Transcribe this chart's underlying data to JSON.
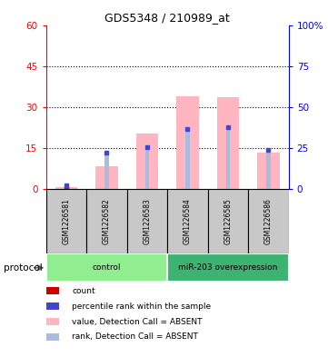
{
  "title": "GDS5348 / 210989_at",
  "samples": [
    "GSM1226581",
    "GSM1226582",
    "GSM1226583",
    "GSM1226584",
    "GSM1226585",
    "GSM1226586"
  ],
  "value_bars": [
    0.8,
    8.5,
    20.5,
    34.0,
    33.5,
    13.5
  ],
  "rank_bars": [
    1.5,
    13.5,
    15.5,
    22.0,
    22.5,
    14.5
  ],
  "count_marker": [
    true,
    false,
    false,
    false,
    false,
    false
  ],
  "count_y": [
    0.5,
    0,
    0,
    0,
    0,
    0
  ],
  "rank_marker_y": [
    1.5,
    13.5,
    15.5,
    22.0,
    22.5,
    14.5
  ],
  "ylim_left": [
    0,
    60
  ],
  "ylim_right": [
    0,
    100
  ],
  "yticks_left": [
    0,
    15,
    30,
    45,
    60
  ],
  "yticks_left_labels": [
    "0",
    "15",
    "30",
    "45",
    "60"
  ],
  "yticks_right": [
    0,
    25,
    50,
    75,
    100
  ],
  "yticks_right_labels": [
    "0",
    "25",
    "50",
    "75",
    "100%"
  ],
  "groups": [
    {
      "label": "control",
      "start": 0,
      "end": 3,
      "color": "#90EE90"
    },
    {
      "label": "miR-203 overexpression",
      "start": 3,
      "end": 6,
      "color": "#3CB371"
    }
  ],
  "bar_color_value": "#FFB6C1",
  "bar_color_rank": "#AABBDD",
  "dot_color_count": "#CC0000",
  "dot_color_rank": "#4444CC",
  "sample_box_color": "#C8C8C8",
  "background_color": "#FFFFFF",
  "protocol_label": "protocol",
  "legend_items": [
    {
      "color": "#CC0000",
      "label": "count",
      "square": true
    },
    {
      "color": "#4444CC",
      "label": "percentile rank within the sample",
      "square": true
    },
    {
      "color": "#FFB6C1",
      "label": "value, Detection Call = ABSENT",
      "square": true
    },
    {
      "color": "#AABBDD",
      "label": "rank, Detection Call = ABSENT",
      "square": true
    }
  ]
}
